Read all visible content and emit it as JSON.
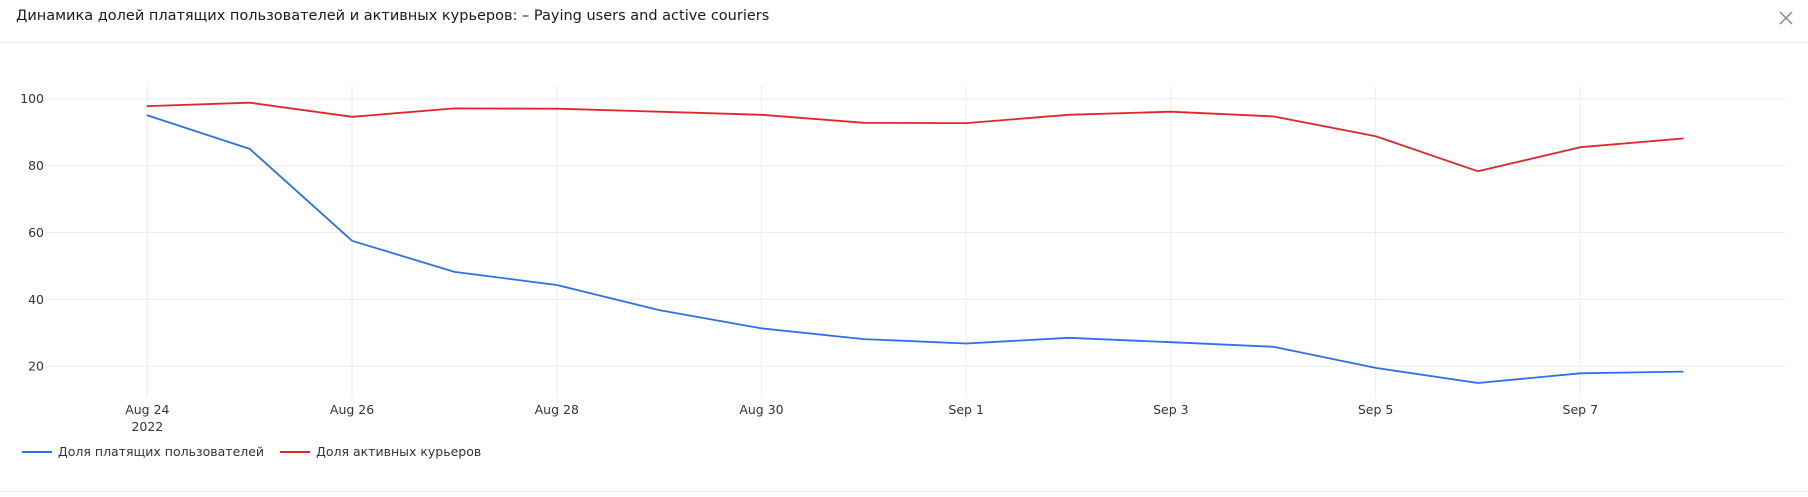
{
  "window": {
    "title": "Динамика долей платящих пользователей и активных курьеров:  – Paying users and active couriers",
    "close_icon": "close-icon"
  },
  "chart_data": {
    "type": "line",
    "x": [
      "2022-08-24",
      "2022-08-25",
      "2022-08-26",
      "2022-08-27",
      "2022-08-28",
      "2022-08-29",
      "2022-08-30",
      "2022-08-31",
      "2022-09-01",
      "2022-09-02",
      "2022-09-03",
      "2022-09-04",
      "2022-09-05",
      "2022-09-06",
      "2022-09-07",
      "2022-09-08"
    ],
    "x_tick_labels": [
      {
        "x": "2022-08-24",
        "label": "Aug 24",
        "sublabel": "2022"
      },
      {
        "x": "2022-08-26",
        "label": "Aug 26"
      },
      {
        "x": "2022-08-28",
        "label": "Aug 28"
      },
      {
        "x": "2022-08-30",
        "label": "Aug 30"
      },
      {
        "x": "2022-09-01",
        "label": "Sep 1"
      },
      {
        "x": "2022-09-03",
        "label": "Sep 3"
      },
      {
        "x": "2022-09-05",
        "label": "Sep 5"
      },
      {
        "x": "2022-09-07",
        "label": "Sep 7"
      }
    ],
    "y_ticks": [
      20,
      40,
      60,
      80,
      100
    ],
    "ylim": [
      10.5,
      103.8
    ],
    "xlim": [
      "2022-08-23",
      "2022-09-09"
    ],
    "grid": true,
    "legend_position": "bottom-left",
    "series": [
      {
        "name": "Доля платящих пользователей",
        "color": "#2f6fee",
        "values": [
          95.0,
          85.0,
          57.5,
          48.2,
          44.3,
          36.8,
          31.3,
          28.1,
          26.8,
          28.5,
          27.2,
          25.8,
          19.5,
          15.0,
          17.9,
          18.4
        ]
      },
      {
        "name": "Доля активных курьеров",
        "color": "#e0262b",
        "values": [
          97.8,
          98.8,
          94.6,
          97.1,
          97.0,
          96.1,
          95.2,
          92.8,
          92.7,
          95.2,
          96.1,
          94.7,
          88.8,
          78.3,
          85.5,
          88.1
        ]
      }
    ]
  },
  "legend": {
    "items": [
      {
        "label": "Доля платящих пользователей",
        "color": "#2f6fee"
      },
      {
        "label": "Доля активных курьеров",
        "color": "#e0262b"
      }
    ]
  }
}
